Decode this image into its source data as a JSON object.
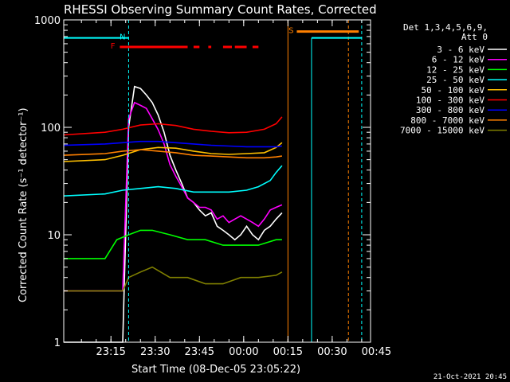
{
  "chart_data": {
    "type": "line",
    "title": "RHESSI Observing Summary Count Rates, Corrected",
    "xlabel": "Start Time (08-Dec-05 23:05:22)",
    "ylabel": "Corrected Count Rate (s⁻¹ detector⁻¹)",
    "ylim": [
      1,
      1000
    ],
    "yscale": "log",
    "xlim_min": [
      -6,
      98
    ],
    "x_ticks": [
      {
        "t": 10,
        "label": "23:15"
      },
      {
        "t": 25,
        "label": "23:30"
      },
      {
        "t": 40,
        "label": "23:45"
      },
      {
        "t": 55,
        "label": "00:00"
      },
      {
        "t": 70,
        "label": "00:15"
      },
      {
        "t": 85,
        "label": "00:30"
      },
      {
        "t": 100,
        "label": "00:45"
      }
    ],
    "y_ticks": [
      {
        "v": 1,
        "label": "1"
      },
      {
        "v": 10,
        "label": "10"
      },
      {
        "v": 100,
        "label": "100"
      },
      {
        "v": 1000,
        "label": "1000"
      }
    ],
    "legend_header": [
      "Det 1,3,4,5,6,9,",
      "Att 0"
    ],
    "legend_position": "top-right",
    "series": [
      {
        "name": "3 - 6 keV",
        "color": "#ffffff",
        "points": [
          [
            -6,
            1
          ],
          [
            14,
            1
          ],
          [
            16,
            100
          ],
          [
            18,
            240
          ],
          [
            20,
            230
          ],
          [
            22,
            200
          ],
          [
            24,
            170
          ],
          [
            26,
            130
          ],
          [
            28,
            90
          ],
          [
            30,
            55
          ],
          [
            32,
            40
          ],
          [
            34,
            30
          ],
          [
            36,
            22
          ],
          [
            38,
            20
          ],
          [
            40,
            17
          ],
          [
            42,
            15
          ],
          [
            44,
            16
          ],
          [
            46,
            12
          ],
          [
            48,
            11
          ],
          [
            50,
            10
          ],
          [
            52,
            9
          ],
          [
            54,
            10
          ],
          [
            56,
            12
          ],
          [
            58,
            10
          ],
          [
            60,
            9
          ],
          [
            62,
            11
          ],
          [
            64,
            12
          ],
          [
            66,
            14
          ],
          [
            68,
            16
          ]
        ]
      },
      {
        "name": "6 - 12 keV",
        "color": "#ff00ff",
        "points": [
          [
            -6,
            3
          ],
          [
            14,
            3
          ],
          [
            16,
            120
          ],
          [
            18,
            170
          ],
          [
            20,
            160
          ],
          [
            22,
            150
          ],
          [
            24,
            120
          ],
          [
            26,
            95
          ],
          [
            28,
            70
          ],
          [
            30,
            45
          ],
          [
            32,
            35
          ],
          [
            34,
            28
          ],
          [
            36,
            22
          ],
          [
            38,
            20
          ],
          [
            40,
            18
          ],
          [
            42,
            18
          ],
          [
            44,
            17
          ],
          [
            46,
            14
          ],
          [
            48,
            15
          ],
          [
            50,
            13
          ],
          [
            52,
            14
          ],
          [
            54,
            15
          ],
          [
            56,
            14
          ],
          [
            58,
            13
          ],
          [
            60,
            12
          ],
          [
            62,
            14
          ],
          [
            64,
            17
          ],
          [
            66,
            18
          ],
          [
            68,
            19
          ]
        ]
      },
      {
        "name": "12 - 25 keV",
        "color": "#00ff00",
        "points": [
          [
            -6,
            6
          ],
          [
            8,
            6
          ],
          [
            12,
            9
          ],
          [
            16,
            10
          ],
          [
            20,
            11
          ],
          [
            24,
            11
          ],
          [
            30,
            10
          ],
          [
            36,
            9
          ],
          [
            42,
            9
          ],
          [
            48,
            8
          ],
          [
            54,
            8
          ],
          [
            60,
            8
          ],
          [
            66,
            9
          ],
          [
            68,
            9
          ]
        ]
      },
      {
        "name": "25 - 50 keV",
        "color": "#00ffff",
        "points": [
          [
            -6,
            23
          ],
          [
            8,
            24
          ],
          [
            14,
            26
          ],
          [
            20,
            27
          ],
          [
            26,
            28
          ],
          [
            32,
            27
          ],
          [
            38,
            25
          ],
          [
            44,
            25
          ],
          [
            50,
            25
          ],
          [
            56,
            26
          ],
          [
            60,
            28
          ],
          [
            64,
            32
          ],
          [
            66,
            38
          ],
          [
            68,
            44
          ]
        ]
      },
      {
        "name": "50 - 100 keV",
        "color": "#ffc000",
        "points": [
          [
            -6,
            48
          ],
          [
            8,
            50
          ],
          [
            14,
            55
          ],
          [
            20,
            62
          ],
          [
            26,
            65
          ],
          [
            32,
            64
          ],
          [
            38,
            60
          ],
          [
            44,
            57
          ],
          [
            50,
            56
          ],
          [
            56,
            57
          ],
          [
            62,
            58
          ],
          [
            66,
            65
          ],
          [
            68,
            72
          ]
        ]
      },
      {
        "name": "100 - 300 keV",
        "color": "#ff0000",
        "points": [
          [
            -6,
            85
          ],
          [
            8,
            90
          ],
          [
            14,
            96
          ],
          [
            20,
            105
          ],
          [
            26,
            108
          ],
          [
            32,
            104
          ],
          [
            38,
            96
          ],
          [
            44,
            92
          ],
          [
            50,
            89
          ],
          [
            56,
            90
          ],
          [
            62,
            96
          ],
          [
            66,
            108
          ],
          [
            68,
            125
          ]
        ]
      },
      {
        "name": "300 - 800 keV",
        "color": "#0000ff",
        "points": [
          [
            -6,
            68
          ],
          [
            8,
            70
          ],
          [
            14,
            72
          ],
          [
            20,
            74
          ],
          [
            26,
            74
          ],
          [
            32,
            72
          ],
          [
            38,
            70
          ],
          [
            44,
            68
          ],
          [
            50,
            67
          ],
          [
            56,
            66
          ],
          [
            62,
            66
          ],
          [
            66,
            66
          ],
          [
            68,
            67
          ]
        ]
      },
      {
        "name": "800 - 7000 keV",
        "color": "#ff8000",
        "points": [
          [
            -6,
            55
          ],
          [
            8,
            57
          ],
          [
            14,
            60
          ],
          [
            20,
            62
          ],
          [
            26,
            60
          ],
          [
            32,
            58
          ],
          [
            38,
            55
          ],
          [
            44,
            54
          ],
          [
            50,
            53
          ],
          [
            56,
            52
          ],
          [
            62,
            52
          ],
          [
            66,
            53
          ],
          [
            68,
            54
          ]
        ]
      },
      {
        "name": "7000 - 15000 keV",
        "color": "#808000",
        "points": [
          [
            -6,
            3
          ],
          [
            14,
            3
          ],
          [
            16,
            4
          ],
          [
            20,
            4.5
          ],
          [
            24,
            5
          ],
          [
            30,
            4
          ],
          [
            36,
            4
          ],
          [
            42,
            3.5
          ],
          [
            48,
            3.5
          ],
          [
            54,
            4
          ],
          [
            60,
            4
          ],
          [
            66,
            4.2
          ],
          [
            68,
            4.5
          ]
        ]
      }
    ],
    "flags": [
      {
        "label": "F",
        "color": "#ff0000",
        "t": 12.5,
        "v": 560
      },
      {
        "label": "N",
        "color": "#00ffff",
        "t": 16,
        "v": 680
      },
      {
        "label": "S",
        "color": "#ff8000",
        "t": 73,
        "v": 780
      }
    ],
    "footer_date": "21-Oct-2021 20:45"
  }
}
